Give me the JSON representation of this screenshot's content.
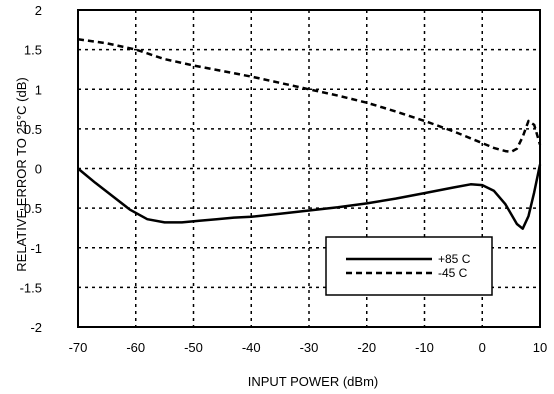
{
  "chart_data": {
    "type": "line",
    "title": "",
    "xlabel": "INPUT POWER (dBm)",
    "ylabel": "RELATIVE ERROR TO 25°C  (dB)",
    "xlim": [
      -70,
      10
    ],
    "ylim": [
      -2,
      2
    ],
    "xticks": [
      -70,
      -60,
      -50,
      -40,
      -30,
      -20,
      -10,
      0,
      10
    ],
    "yticks": [
      2,
      1.5,
      1,
      0.5,
      0,
      -0.5,
      -1,
      -1.5,
      -2
    ],
    "grid": true,
    "legend_position": "bottom-right",
    "series": [
      {
        "name": "+85 C",
        "style": "solid",
        "x": [
          -70,
          -67,
          -64,
          -61,
          -58,
          -55,
          -52,
          -49,
          -46,
          -43,
          -40,
          -35,
          -30,
          -25,
          -20,
          -15,
          -10,
          -5,
          -2,
          0,
          2,
          4,
          6,
          7,
          8,
          9,
          10
        ],
        "values": [
          0.0,
          -0.18,
          -0.35,
          -0.52,
          -0.64,
          -0.68,
          -0.68,
          -0.66,
          -0.64,
          -0.62,
          -0.61,
          -0.57,
          -0.53,
          -0.49,
          -0.44,
          -0.38,
          -0.31,
          -0.24,
          -0.2,
          -0.21,
          -0.28,
          -0.45,
          -0.7,
          -0.76,
          -0.6,
          -0.3,
          0.05
        ]
      },
      {
        "name": "-45 C",
        "style": "dashed",
        "x": [
          -70,
          -65,
          -60,
          -55,
          -50,
          -45,
          -40,
          -35,
          -30,
          -25,
          -20,
          -15,
          -10,
          -5,
          0,
          2,
          4,
          5,
          6,
          7,
          8,
          9,
          10
        ],
        "values": [
          1.63,
          1.58,
          1.5,
          1.38,
          1.3,
          1.23,
          1.16,
          1.08,
          1.0,
          0.92,
          0.83,
          0.72,
          0.6,
          0.47,
          0.32,
          0.26,
          0.22,
          0.21,
          0.25,
          0.4,
          0.6,
          0.55,
          0.3
        ]
      }
    ]
  }
}
